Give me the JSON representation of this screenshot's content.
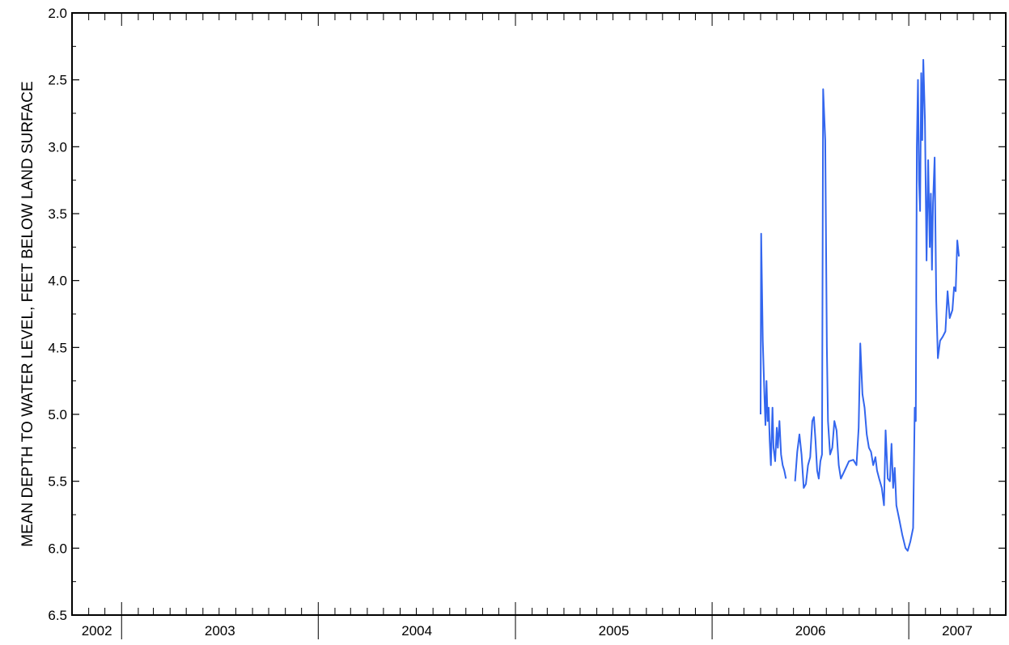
{
  "chart_data": {
    "type": "line",
    "title": "",
    "xlabel": "",
    "ylabel": "MEAN DEPTH TO WATER LEVEL, FEET BELOW LAND SURFACE",
    "yaxis_inverted": true,
    "ylim": [
      2.0,
      6.5
    ],
    "yticks": [
      "2.0",
      "2.5",
      "3.0",
      "3.5",
      "4.0",
      "4.5",
      "5.0",
      "5.5",
      "6.0",
      "6.5"
    ],
    "xlim": [
      "2002-10-01",
      "2007-06-30"
    ],
    "xtick_labels": [
      "2002",
      "2003",
      "2004",
      "2005",
      "2006",
      "2007"
    ],
    "grid": false,
    "line_color": "#3366ee",
    "series": [
      {
        "segments": [
          [
            [
              "2006-04-01",
              5.0
            ],
            [
              "2006-04-02",
              3.65
            ],
            [
              "2006-04-05",
              4.45
            ],
            [
              "2006-04-08",
              4.85
            ],
            [
              "2006-04-10",
              5.08
            ],
            [
              "2006-04-12",
              4.75
            ],
            [
              "2006-04-14",
              5.05
            ],
            [
              "2006-04-16",
              4.95
            ],
            [
              "2006-04-18",
              5.2
            ],
            [
              "2006-04-20",
              5.38
            ],
            [
              "2006-04-23",
              4.95
            ],
            [
              "2006-04-25",
              5.25
            ],
            [
              "2006-04-28",
              5.35
            ],
            [
              "2006-05-01",
              5.1
            ],
            [
              "2006-05-03",
              5.25
            ],
            [
              "2006-05-06",
              5.05
            ],
            [
              "2006-05-09",
              5.3
            ],
            [
              "2006-05-12",
              5.38
            ],
            [
              "2006-05-15",
              5.42
            ],
            [
              "2006-05-18",
              5.48
            ]
          ],
          [
            [
              "2006-06-04",
              5.5
            ],
            [
              "2006-06-08",
              5.28
            ],
            [
              "2006-06-12",
              5.15
            ],
            [
              "2006-06-16",
              5.3
            ],
            [
              "2006-06-20",
              5.55
            ],
            [
              "2006-06-24",
              5.52
            ],
            [
              "2006-06-28",
              5.38
            ],
            [
              "2006-07-02",
              5.32
            ],
            [
              "2006-07-06",
              5.05
            ],
            [
              "2006-07-09",
              5.02
            ],
            [
              "2006-07-12",
              5.2
            ],
            [
              "2006-07-15",
              5.42
            ],
            [
              "2006-07-18",
              5.48
            ],
            [
              "2006-07-21",
              5.35
            ],
            [
              "2006-07-24",
              5.3
            ],
            [
              "2006-07-26",
              2.57
            ],
            [
              "2006-07-30",
              2.95
            ],
            [
              "2006-08-02",
              4.5
            ],
            [
              "2006-08-04",
              5.05
            ],
            [
              "2006-08-08",
              5.3
            ],
            [
              "2006-08-12",
              5.25
            ],
            [
              "2006-08-16",
              5.05
            ],
            [
              "2006-08-20",
              5.12
            ],
            [
              "2006-08-24",
              5.38
            ],
            [
              "2006-08-28",
              5.48
            ],
            [
              "2006-09-04",
              5.42
            ],
            [
              "2006-09-12",
              5.35
            ],
            [
              "2006-09-20",
              5.34
            ],
            [
              "2006-09-26",
              5.38
            ],
            [
              "2006-09-30",
              5.1
            ],
            [
              "2006-10-03",
              4.47
            ],
            [
              "2006-10-07",
              4.85
            ],
            [
              "2006-10-11",
              4.95
            ],
            [
              "2006-10-15",
              5.15
            ],
            [
              "2006-10-19",
              5.25
            ],
            [
              "2006-10-23",
              5.28
            ],
            [
              "2006-10-27",
              5.38
            ],
            [
              "2006-10-31",
              5.32
            ],
            [
              "2006-11-03",
              5.42
            ],
            [
              "2006-11-07",
              5.48
            ],
            [
              "2006-11-12",
              5.55
            ],
            [
              "2006-11-16",
              5.68
            ],
            [
              "2006-11-19",
              5.12
            ],
            [
              "2006-11-23",
              5.48
            ],
            [
              "2006-11-27",
              5.5
            ],
            [
              "2006-11-30",
              5.22
            ],
            [
              "2006-12-03",
              5.55
            ],
            [
              "2006-12-06",
              5.4
            ],
            [
              "2006-12-09",
              5.68
            ],
            [
              "2006-12-14",
              5.78
            ],
            [
              "2006-12-20",
              5.9
            ],
            [
              "2006-12-26",
              6.0
            ],
            [
              "2006-12-30",
              6.02
            ],
            [
              "2007-01-04",
              5.95
            ],
            [
              "2007-01-09",
              5.85
            ],
            [
              "2007-01-12",
              4.95
            ],
            [
              "2007-01-14",
              5.05
            ],
            [
              "2007-01-16",
              3.0
            ],
            [
              "2007-01-18",
              2.5
            ],
            [
              "2007-01-20",
              3.25
            ],
            [
              "2007-01-22",
              3.48
            ],
            [
              "2007-01-24",
              2.45
            ],
            [
              "2007-01-26",
              2.95
            ],
            [
              "2007-01-28",
              2.35
            ],
            [
              "2007-01-31",
              2.8
            ],
            [
              "2007-02-03",
              3.85
            ],
            [
              "2007-02-06",
              3.1
            ],
            [
              "2007-02-09",
              3.75
            ],
            [
              "2007-02-11",
              3.35
            ],
            [
              "2007-02-13",
              3.92
            ],
            [
              "2007-02-15",
              3.42
            ],
            [
              "2007-02-18",
              3.08
            ],
            [
              "2007-02-21",
              4.15
            ],
            [
              "2007-02-24",
              4.58
            ],
            [
              "2007-02-28",
              4.45
            ],
            [
              "2007-03-05",
              4.42
            ],
            [
              "2007-03-10",
              4.38
            ],
            [
              "2007-03-14",
              4.08
            ],
            [
              "2007-03-18",
              4.28
            ],
            [
              "2007-03-23",
              4.22
            ],
            [
              "2007-03-26",
              4.05
            ],
            [
              "2007-03-29",
              4.08
            ],
            [
              "2007-04-01",
              3.7
            ],
            [
              "2007-04-04",
              3.82
            ]
          ]
        ]
      }
    ]
  }
}
